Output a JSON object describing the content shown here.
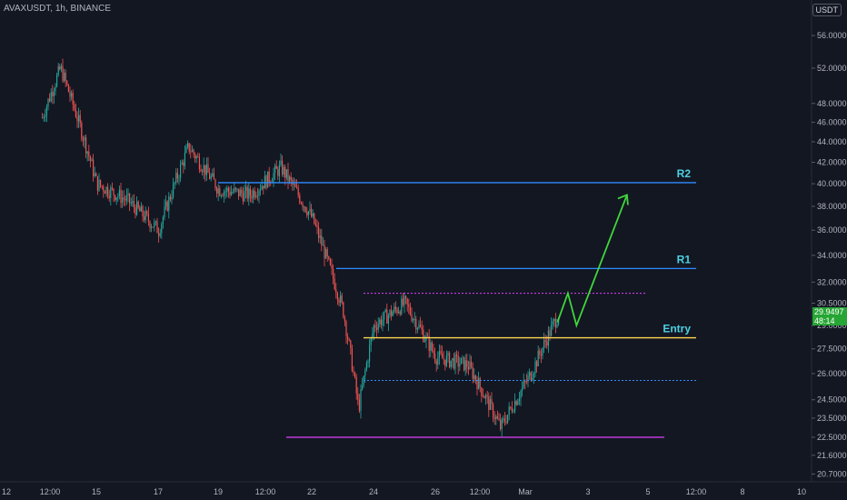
{
  "header": {
    "symbol": "AVAXUSDT, 1h, BINANCE",
    "currency": "USDT"
  },
  "last_price": {
    "value": "29.9497",
    "countdown": "48:14"
  },
  "colors": {
    "background": "#131722",
    "up": "#26a69a",
    "down": "#ef5350",
    "green_line": "#3fd63b",
    "resistance": "#2f8bff",
    "entry": "#ffd54f",
    "support": "#e040fb",
    "label": "#4dd0e1"
  },
  "chart_data": {
    "type": "candlestick",
    "title": "",
    "x_tick_labels": [
      "12",
      "12:00",
      "15",
      "17",
      "19",
      "12:00",
      "22",
      "24",
      "26",
      "12:00",
      "Mar",
      "3",
      "5",
      "12:00",
      "8",
      "10"
    ],
    "y_tick_labels": [
      "56.0000",
      "52.0000",
      "48.0000",
      "46.0000",
      "44.0000",
      "42.0000",
      "40.0000",
      "38.0000",
      "36.0000",
      "34.0000",
      "32.0000",
      "30.5000",
      "29.0000",
      "27.5000",
      "26.0000",
      "24.5000",
      "23.5000",
      "22.5000",
      "21.6000",
      "20.7000"
    ],
    "y_scale": "log",
    "ylim": [
      20.3,
      59
    ],
    "price_path": [
      {
        "x": "12",
        "y": 46.5
      },
      {
        "x": "13",
        "y": 52
      },
      {
        "x": "14",
        "y": 46
      },
      {
        "x": "15",
        "y": 40
      },
      {
        "x": "16",
        "y": 38.5
      },
      {
        "x": "17",
        "y": 36
      },
      {
        "x": "18",
        "y": 43.5
      },
      {
        "x": "19",
        "y": 39.5
      },
      {
        "x": "20",
        "y": 39
      },
      {
        "x": "21",
        "y": 41.5
      },
      {
        "x": "22",
        "y": 37
      },
      {
        "x": "23",
        "y": 30
      },
      {
        "x": "23.5",
        "y": 24
      },
      {
        "x": "24",
        "y": 29
      },
      {
        "x": "25",
        "y": 30.5
      },
      {
        "x": "26",
        "y": 27
      },
      {
        "x": "27",
        "y": 26.5
      },
      {
        "x": "28",
        "y": 23
      },
      {
        "x": "Mar",
        "y": 26
      },
      {
        "x": "2",
        "y": 29.95
      }
    ],
    "levels": [
      {
        "label": "R2",
        "value": 40.1
      },
      {
        "label": "R1",
        "value": 33.0
      },
      {
        "label": "Entry",
        "value": 28.2
      },
      {
        "label": "",
        "value": 22.5
      }
    ],
    "dotted_levels": [
      31.2,
      25.6
    ],
    "projection": [
      {
        "x": "2.3",
        "y": 31.2
      },
      {
        "x": "2.6",
        "y": 29.0
      },
      {
        "x": "4.3",
        "y": 39.0
      }
    ],
    "grid": false
  }
}
